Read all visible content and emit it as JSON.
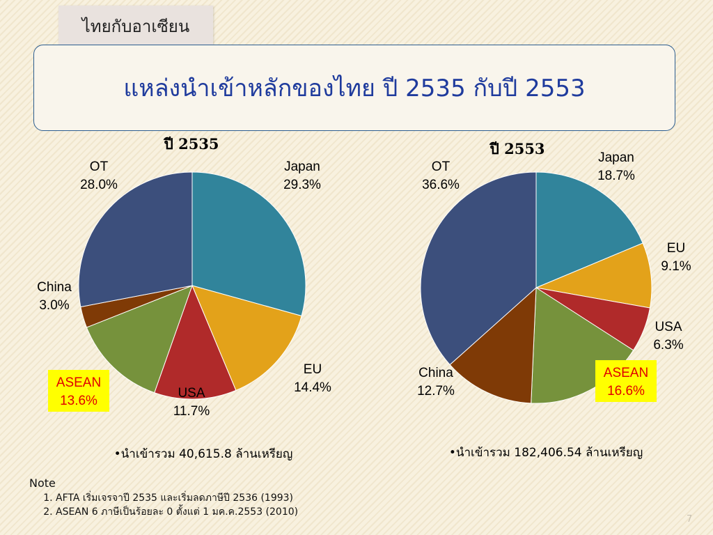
{
  "header": {
    "tab_label": "ไทยกับอาเซียน",
    "title": "แหล่งนำเข้าหลักของไทย ปี 2535 กับปี 2553"
  },
  "colors": {
    "japan": "#31849b",
    "eu": "#e3a21a",
    "usa": "#b02a2a",
    "asean": "#76923c",
    "china": "#7f3a06",
    "ot": "#3c4f7c",
    "asean_label_bg": "#ffff00",
    "asean_label_text": "#e00000"
  },
  "chart_data": [
    {
      "type": "pie",
      "title": "ปี 2535",
      "slices": [
        {
          "name": "Japan",
          "value": 29.3,
          "pct_label": "29.3%"
        },
        {
          "name": "EU",
          "value": 14.4,
          "pct_label": "14.4%"
        },
        {
          "name": "USA",
          "value": 11.7,
          "pct_label": "11.7%"
        },
        {
          "name": "ASEAN",
          "value": 13.6,
          "pct_label": "13.6%"
        },
        {
          "name": "China",
          "value": 3.0,
          "pct_label": "3.0%"
        },
        {
          "name": "OT",
          "value": 28.0,
          "pct_label": "28.0%"
        }
      ],
      "caption": "•นำเข้ารวม 40,615.8 ล้านเหรียญ"
    },
    {
      "type": "pie",
      "title": "ปี 2553",
      "slices": [
        {
          "name": "Japan",
          "value": 18.7,
          "pct_label": "18.7%"
        },
        {
          "name": "EU",
          "value": 9.1,
          "pct_label": "9.1%"
        },
        {
          "name": "USA",
          "value": 6.3,
          "pct_label": "6.3%"
        },
        {
          "name": "ASEAN",
          "value": 16.6,
          "pct_label": "16.6%"
        },
        {
          "name": "China",
          "value": 12.7,
          "pct_label": "12.7%"
        },
        {
          "name": "OT",
          "value": 36.6,
          "pct_label": "36.6%"
        }
      ],
      "caption": "•นำเข้ารวม 182,406.54 ล้านเหรียญ"
    }
  ],
  "notes": {
    "title": "Note",
    "items": [
      "AFTA เริ่มเจรจาปี 2535 และเริ่มลดภาษีปี 2536 (1993)",
      "ASEAN 6 ภาษีเป็นร้อยละ 0 ตั้งแต่ 1 มค.ค.2553 (2010)"
    ]
  },
  "footer": {
    "page_number": "7"
  }
}
